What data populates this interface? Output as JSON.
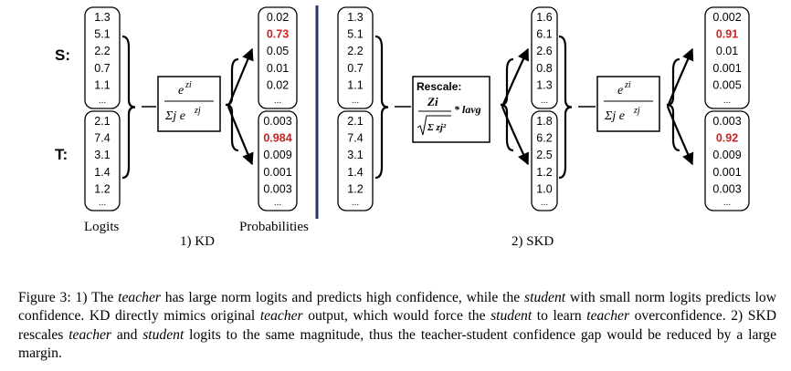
{
  "colors": {
    "highlight": "#cc2222",
    "divider": "#1f3864",
    "text": "#000000"
  },
  "labels": {
    "s_row": "S:",
    "t_row": "T:",
    "logits": "Logits",
    "kd_title": "1) KD",
    "probabilities": "Probabilities",
    "skd_title": "2) SKD",
    "ellipsis": "..."
  },
  "softmax_box": {
    "numerator": "e",
    "numerator_sup": "zi",
    "denominator": "Σj e",
    "denominator_sup": "zj"
  },
  "rescale_box": {
    "title": "Rescale:",
    "numerator": "Zi",
    "denominator": "Σ zj²",
    "multiplier": "* lavg"
  },
  "kd": {
    "s_logits": [
      "1.3",
      "5.1",
      "2.2",
      "0.7",
      "1.1"
    ],
    "t_logits": [
      "2.1",
      "7.4",
      "3.1",
      "1.4",
      "1.2"
    ],
    "s_probs": [
      "0.02",
      "0.73",
      "0.05",
      "0.01",
      "0.02"
    ],
    "t_probs": [
      "0.003",
      "0.984",
      "0.009",
      "0.001",
      "0.003"
    ]
  },
  "skd": {
    "s_logits": [
      "1.3",
      "5.1",
      "2.2",
      "0.7",
      "1.1"
    ],
    "t_logits": [
      "2.1",
      "7.4",
      "3.1",
      "1.4",
      "1.2"
    ],
    "s_rescaled": [
      "1.6",
      "6.1",
      "2.6",
      "0.8",
      "1.3"
    ],
    "t_rescaled": [
      "1.8",
      "6.2",
      "2.5",
      "1.2",
      "1.0"
    ],
    "s_probs": [
      "0.002",
      "0.91",
      "0.01",
      "0.001",
      "0.005"
    ],
    "t_probs": [
      "0.003",
      "0.92",
      "0.009",
      "0.001",
      "0.003"
    ]
  },
  "highlight_index": 1,
  "caption": {
    "p1": "Figure 3: 1) The ",
    "w1": "teacher",
    "p2": " has large norm logits and predicts high confidence, while the ",
    "w2": "student",
    "p3": " with small norm logits predicts low confidence. KD directly mimics original ",
    "w3": "teacher",
    "p4": " output, which would force the ",
    "w4": "student",
    "p5": " to learn ",
    "w5": "teacher",
    "p6": " overconfidence. 2) SKD rescales ",
    "w6": "teacher",
    "p7": " and ",
    "w7": "student",
    "p8": " logits to the same magnitude, thus the teacher-student confidence gap would be reduced by a large margin."
  }
}
